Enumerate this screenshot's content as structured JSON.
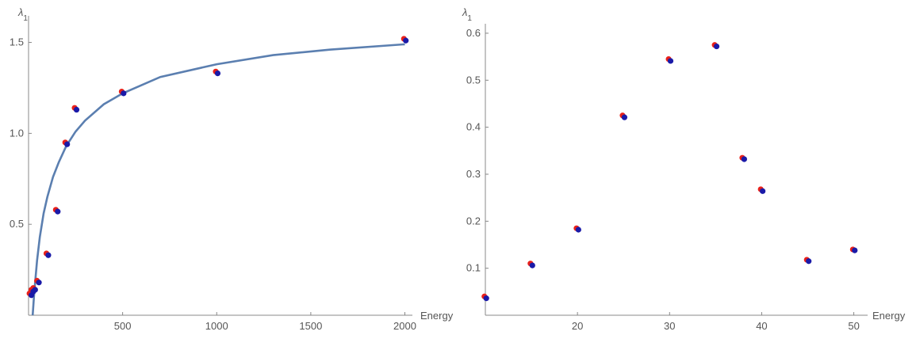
{
  "chart_data": [
    {
      "type": "scatter",
      "title": "",
      "xlabel": "Energy",
      "ylabel": "λ1",
      "xlim": [
        0,
        2040
      ],
      "ylim": [
        0,
        1.62
      ],
      "x_axis_crosses_at": 0,
      "y_axis_at": 0,
      "xticks": [
        500,
        1000,
        1500,
        2000
      ],
      "xtick_labels": [
        "500",
        "1000",
        "1500",
        "2000"
      ],
      "yticks": [
        0.5,
        1.0,
        1.5
      ],
      "ytick_labels": [
        "0.5",
        "1.0",
        "1.5"
      ],
      "grid": false,
      "legend": "none",
      "series": [
        {
          "color": "#e8201a",
          "x": [
            10,
            20,
            30,
            50,
            100,
            150,
            200,
            250,
            500,
            1000,
            2000
          ],
          "y": [
            0.12,
            0.14,
            0.15,
            0.19,
            0.34,
            0.58,
            0.95,
            1.14,
            1.23,
            1.34,
            1.52
          ]
        },
        {
          "color": "#1a1aa8",
          "x": [
            10,
            20,
            30,
            50,
            100,
            150,
            200,
            250,
            500,
            1000,
            2000
          ],
          "y": [
            0.11,
            0.13,
            0.14,
            0.18,
            0.33,
            0.57,
            0.94,
            1.13,
            1.22,
            1.33,
            1.51
          ]
        }
      ],
      "fit_curve": {
        "color": "#5b7fb0",
        "x": [
          22,
          30,
          45,
          60,
          80,
          100,
          130,
          160,
          200,
          250,
          300,
          400,
          500,
          700,
          1000,
          1300,
          1600,
          2000
        ],
        "y": [
          0.0,
          0.12,
          0.3,
          0.43,
          0.56,
          0.65,
          0.76,
          0.84,
          0.93,
          1.01,
          1.07,
          1.16,
          1.22,
          1.31,
          1.38,
          1.43,
          1.46,
          1.49
        ]
      }
    },
    {
      "type": "scatter",
      "title": "",
      "xlabel": "Energy",
      "ylabel": "λ1",
      "xlim": [
        10,
        51.5
      ],
      "ylim": [
        0,
        0.61
      ],
      "x_axis_crosses_at": 0,
      "y_axis_at": 10,
      "xticks": [
        20,
        30,
        40,
        50
      ],
      "xtick_labels": [
        "20",
        "30",
        "40",
        "50"
      ],
      "yticks": [
        0.1,
        0.2,
        0.3,
        0.4,
        0.5,
        0.6
      ],
      "ytick_labels": [
        "0.1",
        "0.2",
        "0.3",
        "0.4",
        "0.5",
        "0.6"
      ],
      "grid": false,
      "legend": "none",
      "series": [
        {
          "color": "#e8201a",
          "x": [
            10,
            15,
            20,
            25,
            30,
            35,
            38,
            40,
            45,
            50
          ],
          "y": [
            0.04,
            0.11,
            0.185,
            0.425,
            0.545,
            0.575,
            0.335,
            0.268,
            0.118,
            0.14
          ]
        },
        {
          "color": "#1a1aa8",
          "x": [
            10,
            15,
            20,
            25,
            30,
            35,
            38,
            40,
            45,
            50
          ],
          "y": [
            0.036,
            0.106,
            0.182,
            0.421,
            0.541,
            0.572,
            0.332,
            0.264,
            0.115,
            0.138
          ]
        }
      ]
    }
  ]
}
